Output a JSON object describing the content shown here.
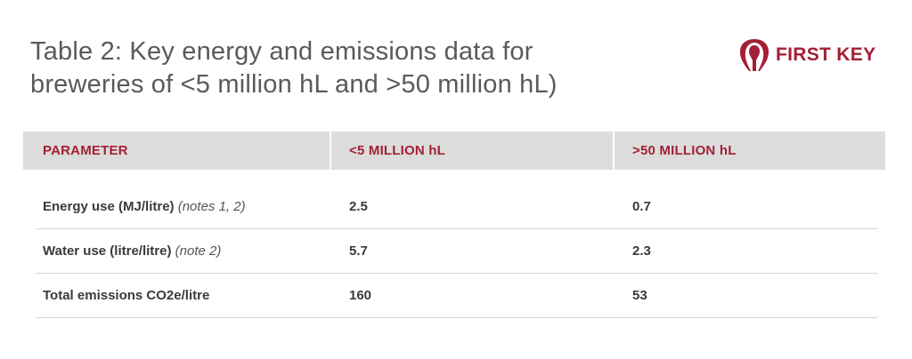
{
  "title_line1": "Table 2: Key energy and emissions data for",
  "title_line2": "breweries of <5 million hL and >50 million hL)",
  "logo": {
    "text": "FIRST KEY",
    "icon": "first-key-logo-icon",
    "color": "#a31f34"
  },
  "table": {
    "headers": [
      "PARAMETER",
      "<5 MILLION hL",
      ">50 MILLION hL"
    ],
    "rows": [
      {
        "parameter": "Energy use (MJ/litre)",
        "note": "(notes 1, 2)",
        "small": "2.5",
        "large": "0.7"
      },
      {
        "parameter": "Water use (litre/litre)",
        "note": "(note 2)",
        "small": "5.7",
        "large": "2.3"
      },
      {
        "parameter": "Total emissions CO2e/litre",
        "note": "",
        "small": "160",
        "large": "53"
      }
    ]
  },
  "colors": {
    "accent": "#a31f34",
    "header_bg": "#dcdcdc",
    "title_text": "#5a5a5a"
  }
}
